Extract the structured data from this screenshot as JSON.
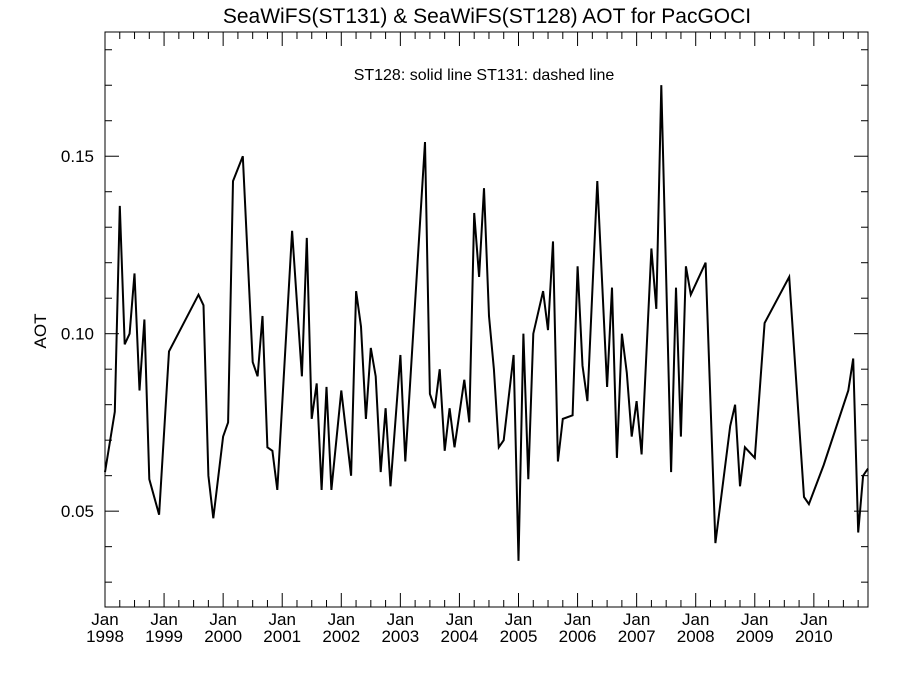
{
  "chart_data": {
    "type": "line",
    "title": "SeaWiFS(ST131) & SeaWiFS(ST128)  AOT for PacGOCI",
    "annotation": "ST128: solid line   ST131: dashed line",
    "xlabel": "",
    "ylabel": "AOT",
    "ylim": [
      0.023,
      0.185
    ],
    "xlim": [
      "1998-01",
      "2010-12"
    ],
    "grid": false,
    "y_ticks": [
      {
        "value": 0.05,
        "label": "0.05"
      },
      {
        "value": 0.1,
        "label": "0.10"
      },
      {
        "value": 0.15,
        "label": "0.15"
      }
    ],
    "x_ticks": [
      {
        "month": "1998-01",
        "line1": "Jan",
        "line2": "1998"
      },
      {
        "month": "1999-01",
        "line1": "Jan",
        "line2": "1999"
      },
      {
        "month": "2000-01",
        "line1": "Jan",
        "line2": "2000"
      },
      {
        "month": "2001-01",
        "line1": "Jan",
        "line2": "2001"
      },
      {
        "month": "2002-01",
        "line1": "Jan",
        "line2": "2002"
      },
      {
        "month": "2003-01",
        "line1": "Jan",
        "line2": "2003"
      },
      {
        "month": "2004-01",
        "line1": "Jan",
        "line2": "2004"
      },
      {
        "month": "2005-01",
        "line1": "Jan",
        "line2": "2005"
      },
      {
        "month": "2006-01",
        "line1": "Jan",
        "line2": "2006"
      },
      {
        "month": "2007-01",
        "line1": "Jan",
        "line2": "2007"
      },
      {
        "month": "2008-01",
        "line1": "Jan",
        "line2": "2008"
      },
      {
        "month": "2009-01",
        "line1": "Jan",
        "line2": "2009"
      },
      {
        "month": "2010-01",
        "line1": "Jan",
        "line2": "2010"
      }
    ],
    "series": [
      {
        "line_color": "#000000",
        "points": [
          [
            "1998-01",
            0.061
          ],
          [
            "1998-03",
            0.078
          ],
          [
            "1998-04",
            0.136
          ],
          [
            "1998-05",
            0.097
          ],
          [
            "1998-06",
            0.1
          ],
          [
            "1998-07",
            0.117
          ],
          [
            "1998-08",
            0.084
          ],
          [
            "1998-09",
            0.104
          ],
          [
            "1998-10",
            0.059
          ],
          [
            "1998-12",
            0.049
          ],
          [
            "1999-02",
            0.095
          ],
          [
            "1999-08",
            0.111
          ],
          [
            "1999-09",
            0.108
          ],
          [
            "1999-10",
            0.06
          ],
          [
            "1999-11",
            0.048
          ],
          [
            "2000-01",
            0.071
          ],
          [
            "2000-02",
            0.075
          ],
          [
            "2000-03",
            0.143
          ],
          [
            "2000-05",
            0.15
          ],
          [
            "2000-07",
            0.092
          ],
          [
            "2000-08",
            0.088
          ],
          [
            "2000-09",
            0.105
          ],
          [
            "2000-10",
            0.068
          ],
          [
            "2000-11",
            0.067
          ],
          [
            "2000-12",
            0.056
          ],
          [
            "2001-03",
            0.129
          ],
          [
            "2001-05",
            0.088
          ],
          [
            "2001-06",
            0.127
          ],
          [
            "2001-07",
            0.076
          ],
          [
            "2001-08",
            0.086
          ],
          [
            "2001-09",
            0.056
          ],
          [
            "2001-10",
            0.085
          ],
          [
            "2001-11",
            0.056
          ],
          [
            "2002-01",
            0.084
          ],
          [
            "2002-03",
            0.06
          ],
          [
            "2002-04",
            0.112
          ],
          [
            "2002-05",
            0.102
          ],
          [
            "2002-06",
            0.076
          ],
          [
            "2002-07",
            0.096
          ],
          [
            "2002-08",
            0.088
          ],
          [
            "2002-09",
            0.061
          ],
          [
            "2002-10",
            0.079
          ],
          [
            "2002-11",
            0.057
          ],
          [
            "2003-01",
            0.094
          ],
          [
            "2003-02",
            0.064
          ],
          [
            "2003-06",
            0.154
          ],
          [
            "2003-07",
            0.083
          ],
          [
            "2003-08",
            0.079
          ],
          [
            "2003-09",
            0.09
          ],
          [
            "2003-10",
            0.067
          ],
          [
            "2003-11",
            0.079
          ],
          [
            "2003-12",
            0.068
          ],
          [
            "2004-02",
            0.087
          ],
          [
            "2004-03",
            0.075
          ],
          [
            "2004-04",
            0.134
          ],
          [
            "2004-05",
            0.116
          ],
          [
            "2004-06",
            0.141
          ],
          [
            "2004-07",
            0.105
          ],
          [
            "2004-08",
            0.09
          ],
          [
            "2004-09",
            0.068
          ],
          [
            "2004-10",
            0.07
          ],
          [
            "2004-12",
            0.094
          ],
          [
            "2005-01",
            0.036
          ],
          [
            "2005-02",
            0.1
          ],
          [
            "2005-03",
            0.059
          ],
          [
            "2005-04",
            0.1
          ],
          [
            "2005-06",
            0.112
          ],
          [
            "2005-07",
            0.101
          ],
          [
            "2005-08",
            0.126
          ],
          [
            "2005-09",
            0.064
          ],
          [
            "2005-10",
            0.076
          ],
          [
            "2005-12",
            0.077
          ],
          [
            "2006-01",
            0.119
          ],
          [
            "2006-02",
            0.091
          ],
          [
            "2006-03",
            0.081
          ],
          [
            "2006-05",
            0.143
          ],
          [
            "2006-07",
            0.085
          ],
          [
            "2006-08",
            0.113
          ],
          [
            "2006-09",
            0.065
          ],
          [
            "2006-10",
            0.1
          ],
          [
            "2006-11",
            0.089
          ],
          [
            "2006-12",
            0.071
          ],
          [
            "2007-01",
            0.081
          ],
          [
            "2007-02",
            0.066
          ],
          [
            "2007-04",
            0.124
          ],
          [
            "2007-05",
            0.107
          ],
          [
            "2007-06",
            0.17
          ],
          [
            "2007-08",
            0.061
          ],
          [
            "2007-09",
            0.113
          ],
          [
            "2007-10",
            0.071
          ],
          [
            "2007-11",
            0.119
          ],
          [
            "2007-12",
            0.111
          ],
          [
            "2008-03",
            0.12
          ],
          [
            "2008-05",
            0.041
          ],
          [
            "2008-08",
            0.074
          ],
          [
            "2008-09",
            0.08
          ],
          [
            "2008-10",
            0.057
          ],
          [
            "2008-11",
            0.068
          ],
          [
            "2009-01",
            0.065
          ],
          [
            "2009-03",
            0.103
          ],
          [
            "2009-08",
            0.116
          ],
          [
            "2009-11",
            0.054
          ],
          [
            "2009-12",
            0.052
          ],
          [
            "2010-03",
            0.063
          ],
          [
            "2010-08",
            0.084
          ],
          [
            "2010-09",
            0.093
          ],
          [
            "2010-10",
            0.044
          ],
          [
            "2010-11",
            0.06
          ],
          [
            "2010-12",
            0.062
          ]
        ]
      }
    ]
  }
}
